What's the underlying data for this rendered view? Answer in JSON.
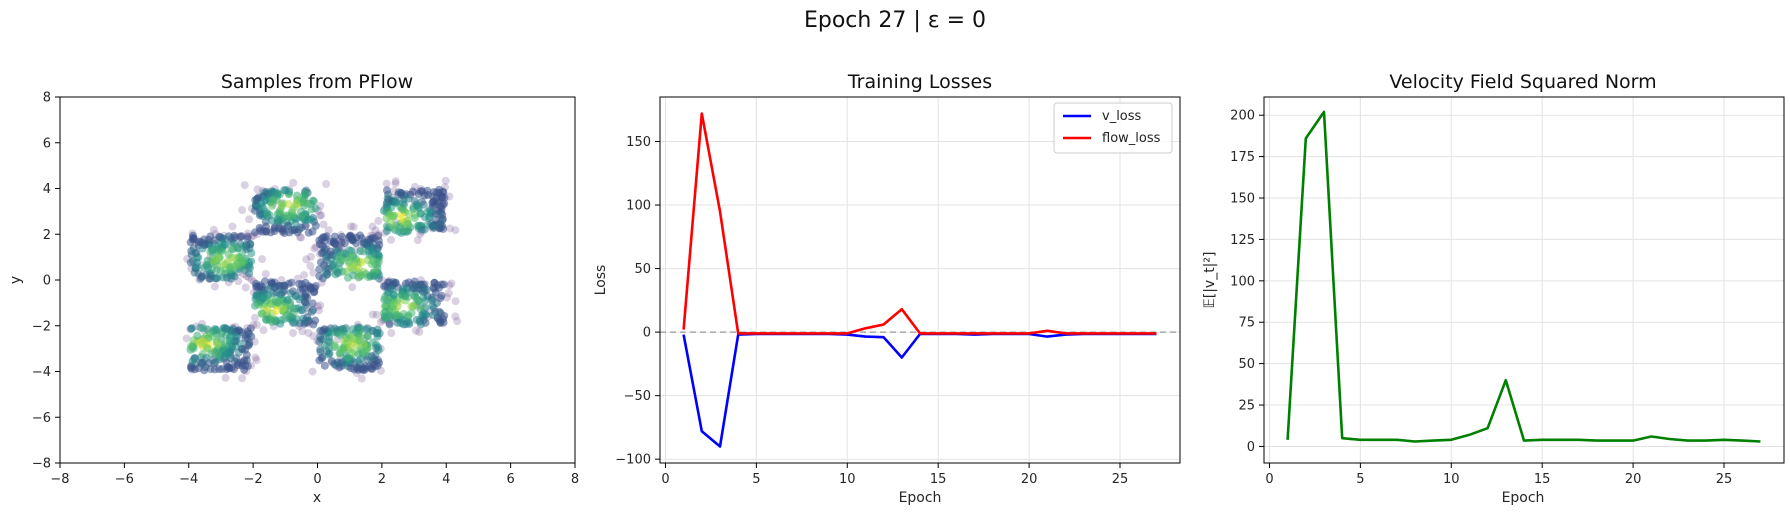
{
  "suptitle": "Epoch 27 | ε = 0",
  "chart_data": [
    {
      "type": "scatter",
      "title": "Samples from PFlow",
      "xlabel": "x",
      "ylabel": "y",
      "xlim": [
        -8,
        8
      ],
      "ylim": [
        -8,
        8
      ],
      "xticks": [
        -8,
        -6,
        -4,
        -2,
        0,
        2,
        4,
        6,
        8
      ],
      "yticks": [
        -8,
        -6,
        -4,
        -2,
        0,
        2,
        4,
        6,
        8
      ],
      "grid": false,
      "clusters": [
        {
          "x_range": [
            -4,
            -2
          ],
          "y_range": [
            0,
            2
          ]
        },
        {
          "x_range": [
            -4,
            -2
          ],
          "y_range": [
            -4,
            -2
          ]
        },
        {
          "x_range": [
            -2,
            0
          ],
          "y_range": [
            2,
            4
          ]
        },
        {
          "x_range": [
            -2,
            0
          ],
          "y_range": [
            -2,
            0
          ]
        },
        {
          "x_range": [
            0,
            2
          ],
          "y_range": [
            0,
            2
          ]
        },
        {
          "x_range": [
            0,
            2
          ],
          "y_range": [
            -4,
            -2
          ]
        },
        {
          "x_range": [
            2,
            4
          ],
          "y_range": [
            2,
            4
          ]
        },
        {
          "x_range": [
            2,
            4
          ],
          "y_range": [
            -2,
            0
          ]
        }
      ],
      "colormap": "viridis",
      "outlier_color": "#7b5a98"
    },
    {
      "type": "line",
      "title": "Training Losses",
      "xlabel": "Epoch",
      "ylabel": "Loss",
      "xlim": [
        -0.3,
        28.3
      ],
      "ylim": [
        -103,
        185
      ],
      "xticks": [
        0,
        5,
        10,
        15,
        20,
        25
      ],
      "yticks": [
        -100,
        -50,
        0,
        50,
        100,
        150
      ],
      "grid": true,
      "legend": "top-right",
      "zero_line": true,
      "x": [
        1,
        2,
        3,
        4,
        5,
        6,
        7,
        8,
        9,
        10,
        11,
        12,
        13,
        14,
        15,
        16,
        17,
        18,
        19,
        20,
        21,
        22,
        23,
        24,
        25,
        26,
        27
      ],
      "series": [
        {
          "name": "v_loss",
          "color": "#0000ff",
          "values": [
            -2,
            -78,
            -90,
            -2,
            -1.5,
            -1.5,
            -1.5,
            -1.5,
            -1.5,
            -2,
            -3.5,
            -4,
            -20,
            -1.5,
            -1.5,
            -1.5,
            -2,
            -1.5,
            -1.5,
            -1.5,
            -3.5,
            -2,
            -1.5,
            -1.5,
            -1.5,
            -1.5,
            -1.5
          ]
        },
        {
          "name": "flow_loss",
          "color": "#ff0000",
          "values": [
            2,
            172,
            95,
            -1,
            -1,
            -1,
            -1,
            -1,
            -1,
            -1,
            3,
            6,
            18,
            -1,
            -1,
            -1,
            -1,
            -1,
            -1,
            -1,
            1,
            -1,
            -1,
            -1,
            -1,
            -1,
            -1
          ]
        }
      ]
    },
    {
      "type": "line",
      "title": "Velocity Field Squared Norm",
      "xlabel": "Epoch",
      "ylabel": "𝔼[|v_t|²]",
      "xlim": [
        -0.3,
        28.3
      ],
      "ylim": [
        -10,
        211
      ],
      "xticks": [
        0,
        5,
        10,
        15,
        20,
        25
      ],
      "yticks": [
        0,
        25,
        50,
        75,
        100,
        125,
        150,
        175,
        200
      ],
      "grid": true,
      "x": [
        1,
        2,
        3,
        4,
        5,
        6,
        7,
        8,
        9,
        10,
        11,
        12,
        13,
        14,
        15,
        16,
        17,
        18,
        19,
        20,
        21,
        22,
        23,
        24,
        25,
        26,
        27
      ],
      "series": [
        {
          "color": "#008000",
          "values": [
            4,
            186,
            202,
            5,
            4,
            4,
            4,
            3,
            3.5,
            4,
            7,
            11,
            40,
            3.5,
            4,
            4,
            4,
            3.5,
            3.5,
            3.5,
            6,
            4.5,
            3.5,
            3.5,
            4,
            3.5,
            3
          ]
        }
      ]
    }
  ]
}
